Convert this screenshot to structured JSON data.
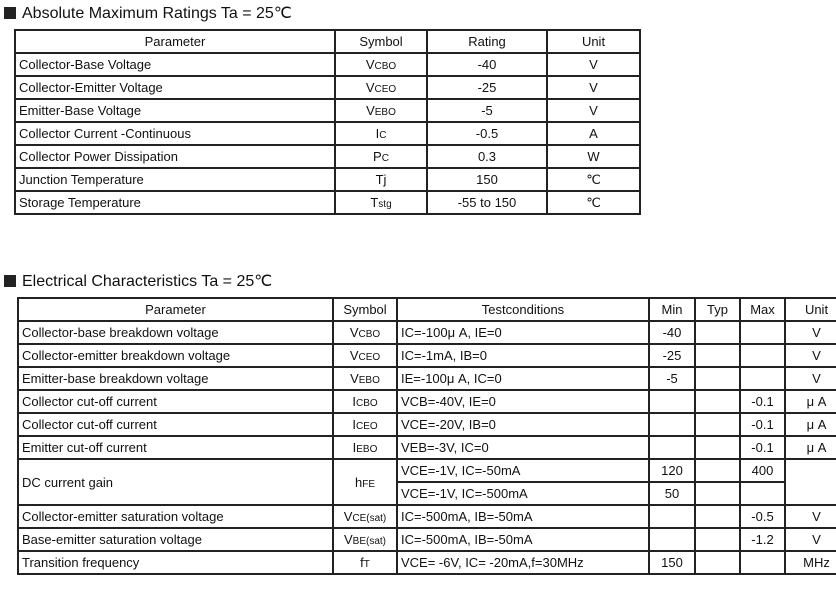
{
  "abs_max": {
    "title": "Absolute Maximum Ratings Ta = 25℃",
    "headers": [
      "Parameter",
      "Symbol",
      "Rating",
      "Unit"
    ],
    "rows": [
      {
        "parameter": "Collector-Base Voltage",
        "symbol": "V",
        "symbol_sub": "CBO",
        "rating": "-40",
        "unit": "V"
      },
      {
        "parameter": "Collector-Emitter Voltage",
        "symbol": "V",
        "symbol_sub": "CEO",
        "rating": "-25",
        "unit": "V"
      },
      {
        "parameter": "Emitter-Base Voltage",
        "symbol": "V",
        "symbol_sub": "EBO",
        "rating": "-5",
        "unit": "V"
      },
      {
        "parameter": "Collector Current -Continuous",
        "symbol": "I",
        "symbol_sub": "C",
        "rating": "-0.5",
        "unit": "A"
      },
      {
        "parameter": "Collector Power Dissipation",
        "symbol": "P",
        "symbol_sub": "C",
        "rating": "0.3",
        "unit": "W"
      },
      {
        "parameter": "Junction Temperature",
        "symbol": "Tj",
        "symbol_sub": "",
        "rating": "150",
        "unit": "℃"
      },
      {
        "parameter": "Storage Temperature",
        "symbol": "T",
        "symbol_sub": "stg",
        "rating": "-55 to 150",
        "unit": "℃"
      }
    ]
  },
  "electrical": {
    "title": "Electrical Characteristics Ta = 25℃",
    "headers": [
      "Parameter",
      "Symbol",
      "Testconditions",
      "Min",
      "Typ",
      "Max",
      "Unit"
    ],
    "rows": [
      {
        "parameter": "Collector-base breakdown voltage",
        "symbol": "V",
        "symbol_sub": "CBO",
        "conditions": [
          "IC=-100μ A, IE=0"
        ],
        "min": [
          "-40"
        ],
        "typ": [
          ""
        ],
        "max": [
          ""
        ],
        "unit": "V"
      },
      {
        "parameter": "Collector-emitter breakdown voltage",
        "symbol": "V",
        "symbol_sub": "CEO",
        "conditions": [
          "IC=-1mA, IB=0"
        ],
        "min": [
          "-25"
        ],
        "typ": [
          ""
        ],
        "max": [
          ""
        ],
        "unit": "V"
      },
      {
        "parameter": "Emitter-base breakdown voltage",
        "symbol": "V",
        "symbol_sub": "EBO",
        "conditions": [
          "IE=-100μ A, IC=0"
        ],
        "min": [
          "-5"
        ],
        "typ": [
          ""
        ],
        "max": [
          ""
        ],
        "unit": "V"
      },
      {
        "parameter": "Collector cut-off current",
        "symbol": "I",
        "symbol_sub": "CBO",
        "conditions": [
          "VCB=-40V, IE=0"
        ],
        "min": [
          ""
        ],
        "typ": [
          ""
        ],
        "max": [
          "-0.1"
        ],
        "unit": "μ A"
      },
      {
        "parameter": "Collector cut-off current",
        "symbol": "I",
        "symbol_sub": "CEO",
        "conditions": [
          "VCE=-20V, IB=0"
        ],
        "min": [
          ""
        ],
        "typ": [
          ""
        ],
        "max": [
          "-0.1"
        ],
        "unit": "μ A"
      },
      {
        "parameter": "Emitter cut-off current",
        "symbol": "I",
        "symbol_sub": "EBO",
        "conditions": [
          "VEB=-3V, IC=0"
        ],
        "min": [
          ""
        ],
        "typ": [
          ""
        ],
        "max": [
          "-0.1"
        ],
        "unit": "μ A"
      },
      {
        "parameter": "DC current gain",
        "symbol": "h",
        "symbol_sub": "FE",
        "conditions": [
          "VCE=-1V, IC=-50mA",
          "VCE=-1V, IC=-500mA"
        ],
        "min": [
          "120",
          "50"
        ],
        "typ": [
          "",
          ""
        ],
        "max": [
          "400",
          ""
        ],
        "unit": ""
      },
      {
        "parameter": "Collector-emitter saturation voltage",
        "symbol": "V",
        "symbol_sub": "CE(sat)",
        "conditions": [
          "IC=-500mA, IB=-50mA"
        ],
        "min": [
          ""
        ],
        "typ": [
          ""
        ],
        "max": [
          "-0.5"
        ],
        "unit": "V"
      },
      {
        "parameter": "Base-emitter saturation voltage",
        "symbol": "V",
        "symbol_sub": "BE(sat)",
        "conditions": [
          "IC=-500mA, IB=-50mA"
        ],
        "min": [
          ""
        ],
        "typ": [
          ""
        ],
        "max": [
          "-1.2"
        ],
        "unit": "V"
      },
      {
        "parameter": "Transition frequency",
        "symbol": "f",
        "symbol_sub": "T",
        "conditions": [
          "VCE= -6V, IC= -20mA,f=30MHz"
        ],
        "min": [
          "150"
        ],
        "typ": [
          ""
        ],
        "max": [
          ""
        ],
        "unit": "MHz"
      }
    ]
  }
}
